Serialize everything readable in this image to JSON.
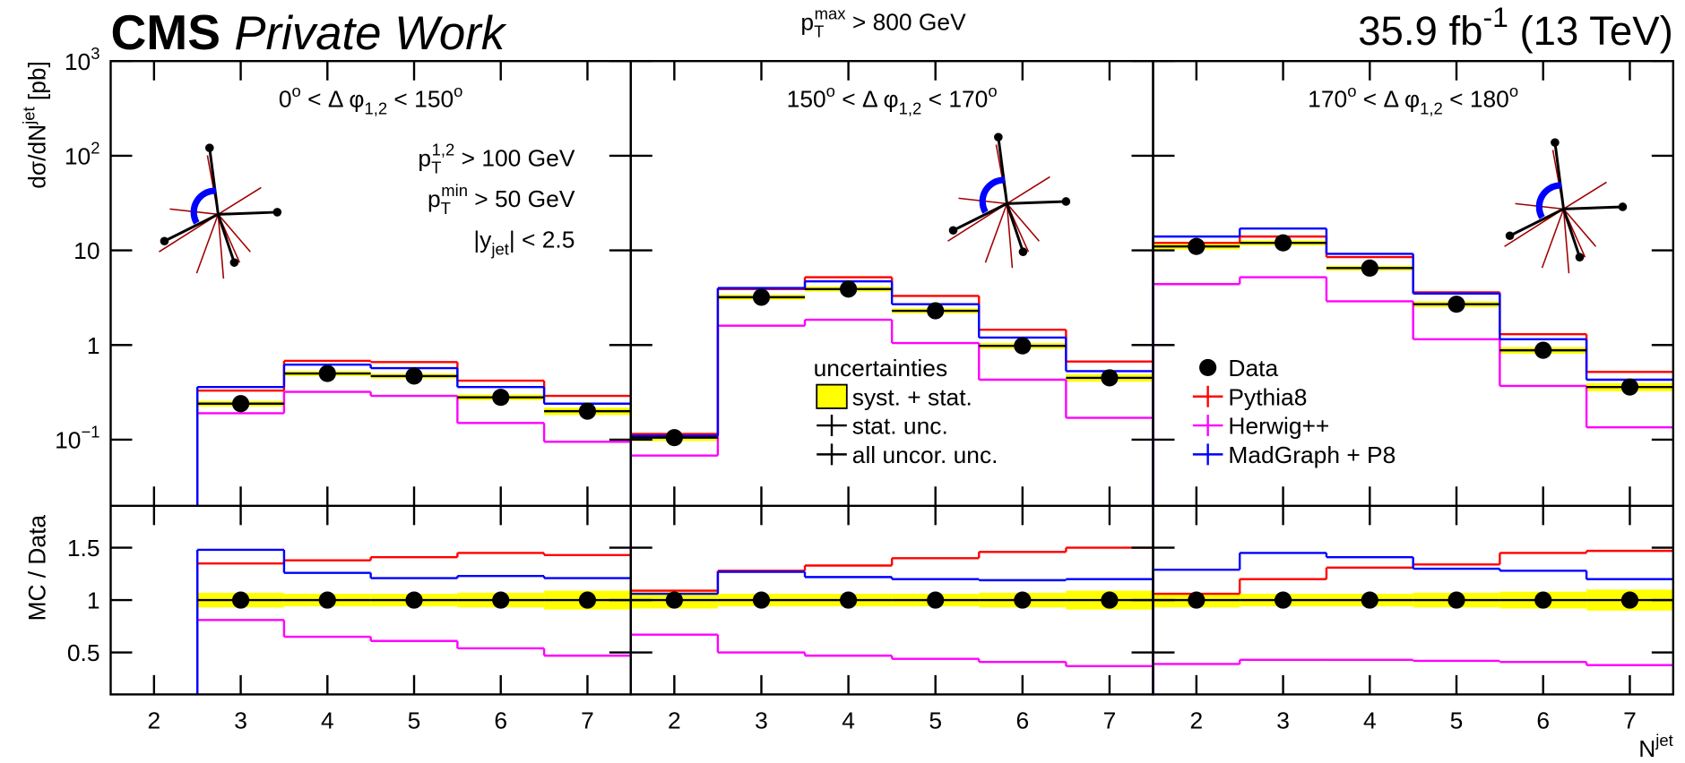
{
  "header": {
    "cms": "CMS",
    "private_work": "Private Work",
    "cut": [
      "p",
      {
        "sub": "T",
        "sup": "max"
      },
      " > 800 GeV"
    ],
    "lumi": [
      "35.9 fb",
      {
        "sup": "-1"
      },
      " (13 TeV)"
    ],
    "ylabel": [
      "dσ/dN",
      {
        "sup": "jet"
      },
      " [pb]"
    ],
    "ratio_label": "MC / Data",
    "xlabel": [
      "N",
      {
        "sup": "jet"
      }
    ]
  },
  "chart_data": [
    {
      "type": "step",
      "title": [
        "0",
        {
          "sup": "o"
        },
        " < Δ φ",
        {
          "sub": "1,2"
        },
        " < 150",
        {
          "sup": "o"
        }
      ],
      "annotations": [
        [
          "p",
          {
            "sub": "T",
            "sup": "1,2"
          },
          " > 100 GeV"
        ],
        [
          "p",
          {
            "sub": "T",
            "sup": "min"
          },
          " >  50 GeV"
        ],
        [
          "|y",
          {
            "sub": "jet"
          },
          "| <  2.5"
        ]
      ],
      "x": [
        3,
        4,
        5,
        6,
        7
      ],
      "bins": [
        2.5,
        3.5,
        4.5,
        5.5,
        6.5,
        7.5
      ],
      "series": [
        {
          "style": "points",
          "color": "#000000",
          "values": [
            0.24,
            0.5,
            0.47,
            0.28,
            0.2
          ],
          "uncertainty": [
            0.07,
            0.06,
            0.06,
            0.07,
            0.09
          ],
          "ratio": [
            1,
            1,
            1,
            1,
            1
          ]
        },
        {
          "style": "step",
          "color": "#ff0000",
          "values": [
            0.33,
            0.68,
            0.66,
            0.42,
            0.29
          ],
          "ratio": [
            1.35,
            1.38,
            1.41,
            1.45,
            1.43
          ]
        },
        {
          "style": "step",
          "color": "#ff00ff",
          "values": [
            0.19,
            0.32,
            0.29,
            0.15,
            0.095
          ],
          "ratio": [
            0.81,
            0.65,
            0.61,
            0.54,
            0.47
          ]
        },
        {
          "style": "step",
          "color": "#0000ff",
          "values": [
            0.36,
            0.62,
            0.57,
            0.36,
            0.24
          ],
          "ratio": [
            1.48,
            1.26,
            1.21,
            1.23,
            1.21
          ]
        }
      ],
      "xlim": [
        1.5,
        7.5
      ],
      "xticks": [
        2,
        3,
        4,
        5,
        6,
        7
      ],
      "log": true,
      "ylim": [
        0.02,
        1000
      ],
      "yticks": [
        {
          "value": 0.1,
          "label": [
            "10",
            {
              "sup": "−1"
            }
          ]
        },
        1,
        10,
        {
          "value": 100,
          "label": [
            "10",
            {
              "sup": "2"
            }
          ]
        },
        {
          "value": 1000,
          "label": [
            "10",
            {
              "sup": "3"
            }
          ]
        }
      ],
      "ratio_ylim": [
        0.1,
        1.9
      ],
      "ratio_yticks": [
        0.5,
        1,
        1.5
      ]
    },
    {
      "type": "step",
      "title": [
        "150",
        {
          "sup": "o"
        },
        " < Δ φ",
        {
          "sub": "1,2"
        },
        " < 170",
        {
          "sup": "o"
        }
      ],
      "x": [
        2,
        3,
        4,
        5,
        6,
        7
      ],
      "bins": [
        1.5,
        2.5,
        3.5,
        4.5,
        5.5,
        6.5,
        7.5
      ],
      "series": [
        {
          "style": "points",
          "color": "#000000",
          "values": [
            0.105,
            3.2,
            3.9,
            2.3,
            0.98,
            0.45
          ],
          "uncertainty": [
            0.08,
            0.06,
            0.06,
            0.06,
            0.07,
            0.09
          ],
          "ratio": [
            1,
            1,
            1,
            1,
            1,
            1
          ]
        },
        {
          "style": "step",
          "color": "#ff0000",
          "values": [
            0.115,
            3.9,
            5.2,
            3.3,
            1.45,
            0.67
          ],
          "ratio": [
            1.09,
            1.28,
            1.33,
            1.4,
            1.46,
            1.5
          ]
        },
        {
          "style": "step",
          "color": "#ff00ff",
          "values": [
            0.068,
            1.6,
            1.85,
            1.05,
            0.43,
            0.17
          ],
          "ratio": [
            0.67,
            0.5,
            0.47,
            0.44,
            0.41,
            0.37
          ]
        },
        {
          "style": "step",
          "color": "#0000ff",
          "values": [
            0.11,
            4.0,
            4.7,
            2.7,
            1.2,
            0.53
          ],
          "ratio": [
            1.06,
            1.27,
            1.22,
            1.2,
            1.19,
            1.2
          ]
        }
      ],
      "xlim": [
        1.5,
        7.5
      ],
      "xticks": [
        2,
        3,
        4,
        5,
        6,
        7
      ],
      "uncertainty_legend": {
        "title": "uncertainties",
        "entries": [
          "syst. + stat.",
          "stat. unc.",
          "all uncor. unc."
        ]
      }
    },
    {
      "type": "step",
      "title": [
        "170",
        {
          "sup": "o"
        },
        " < Δ φ",
        {
          "sub": "1,2"
        },
        " < 180",
        {
          "sup": "o"
        }
      ],
      "x": [
        2,
        3,
        4,
        5,
        6,
        7
      ],
      "bins": [
        1.5,
        2.5,
        3.5,
        4.5,
        5.5,
        6.5,
        7.5
      ],
      "series": [
        {
          "name": "Data",
          "style": "points",
          "color": "#000000",
          "values": [
            11,
            12,
            6.5,
            2.7,
            0.88,
            0.36
          ],
          "uncertainty": [
            0.07,
            0.06,
            0.06,
            0.07,
            0.08,
            0.1
          ],
          "ratio": [
            1,
            1,
            1,
            1,
            1,
            1
          ]
        },
        {
          "name": "Pythia8",
          "style": "step",
          "color": "#ff0000",
          "values": [
            12,
            14,
            8.5,
            3.6,
            1.3,
            0.52
          ],
          "ratio": [
            1.06,
            1.2,
            1.31,
            1.34,
            1.45,
            1.47
          ]
        },
        {
          "name": "Herwig++",
          "style": "step",
          "color": "#ff00ff",
          "values": [
            4.4,
            5.2,
            2.9,
            1.15,
            0.37,
            0.135
          ],
          "ratio": [
            0.39,
            0.43,
            0.43,
            0.42,
            0.41,
            0.38
          ]
        },
        {
          "name": "MadGraph + P8",
          "style": "step",
          "color": "#0000ff",
          "values": [
            14,
            17,
            9.2,
            3.5,
            1.15,
            0.43
          ],
          "ratio": [
            1.29,
            1.45,
            1.41,
            1.3,
            1.28,
            1.2
          ]
        }
      ],
      "xlim": [
        1.5,
        7.5
      ],
      "xticks": [
        2,
        3,
        4,
        5,
        6,
        7
      ]
    }
  ]
}
